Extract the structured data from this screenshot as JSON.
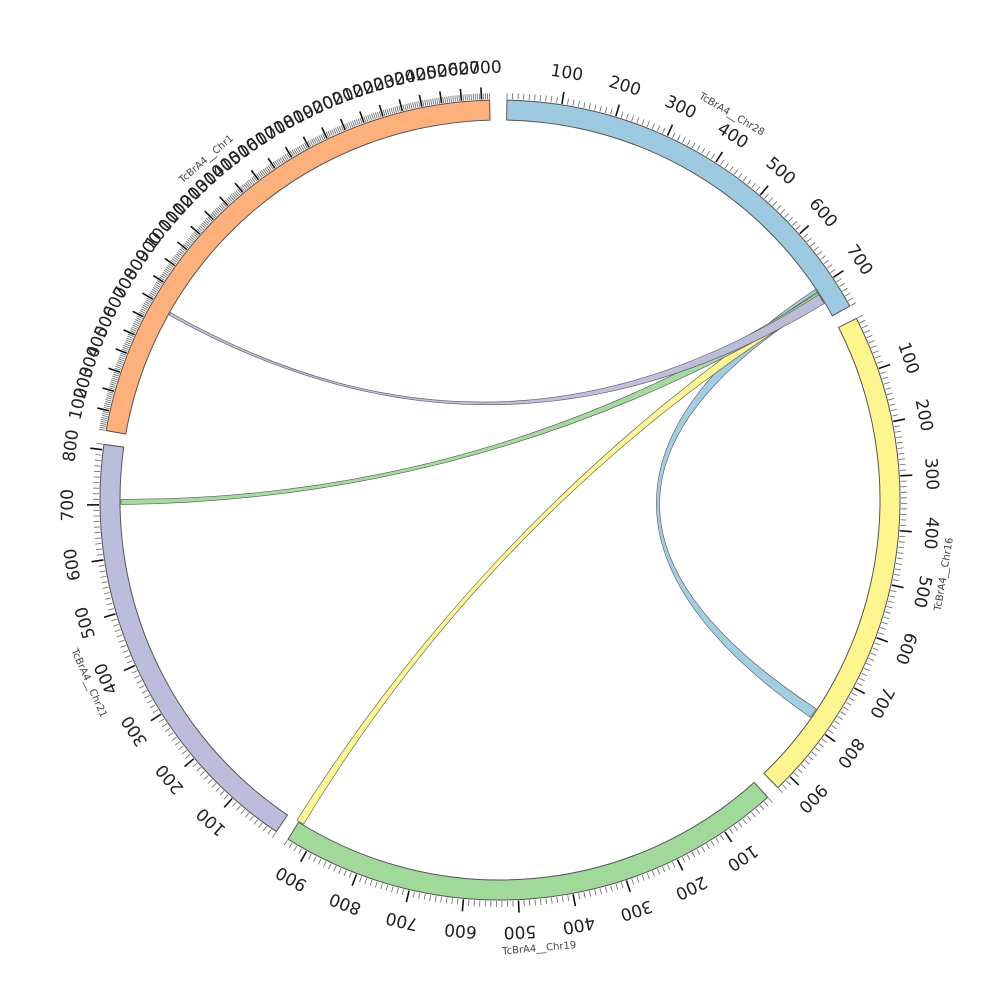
{
  "chart_data": {
    "type": "chord",
    "title": "",
    "tick_interval": 100,
    "chromosomes": [
      {
        "name": "TcBrA4__Chr28",
        "length": 760,
        "color": "#9ECAE1",
        "start_angle": 1,
        "end_angle": 61
      },
      {
        "name": "TcBrA4__Chr16",
        "length": 930,
        "color": "#FFF58E",
        "start_angle": 63,
        "end_angle": 136
      },
      {
        "name": "TcBrA4__Chr19",
        "length": 940,
        "color": "#A1D99B",
        "start_angle": 138,
        "end_angle": 212
      },
      {
        "name": "TcBrA4__Chr21",
        "length": 810,
        "color": "#BCBDDC",
        "start_angle": 214,
        "end_angle": 278
      },
      {
        "name": "TcBrA4__Chr1",
        "length": 2740,
        "color": "#FDB07C",
        "start_angle": 280,
        "end_angle": 358.5
      }
    ],
    "links": [
      {
        "source": "TcBrA4__Chr28",
        "source_range": [
          700,
          725
        ],
        "target": "TcBrA4__Chr16",
        "target_range": [
          770,
          790
        ],
        "color": "#9ECAE1"
      },
      {
        "source": "TcBrA4__Chr28",
        "source_range": [
          706,
          726
        ],
        "target": "TcBrA4__Chr19",
        "target_range": [
          930,
          945
        ],
        "color": "#FFF58E"
      },
      {
        "source": "TcBrA4__Chr28",
        "source_range": [
          708,
          728
        ],
        "target": "TcBrA4__Chr21",
        "target_range": [
          700,
          710
        ],
        "color": "#A1D99B"
      },
      {
        "source": "TcBrA4__Chr28",
        "source_range": [
          712,
          732
        ],
        "target": "TcBrA4__Chr1",
        "target_range": [
          670,
          685
        ],
        "color": "#BCBDDC"
      }
    ]
  }
}
